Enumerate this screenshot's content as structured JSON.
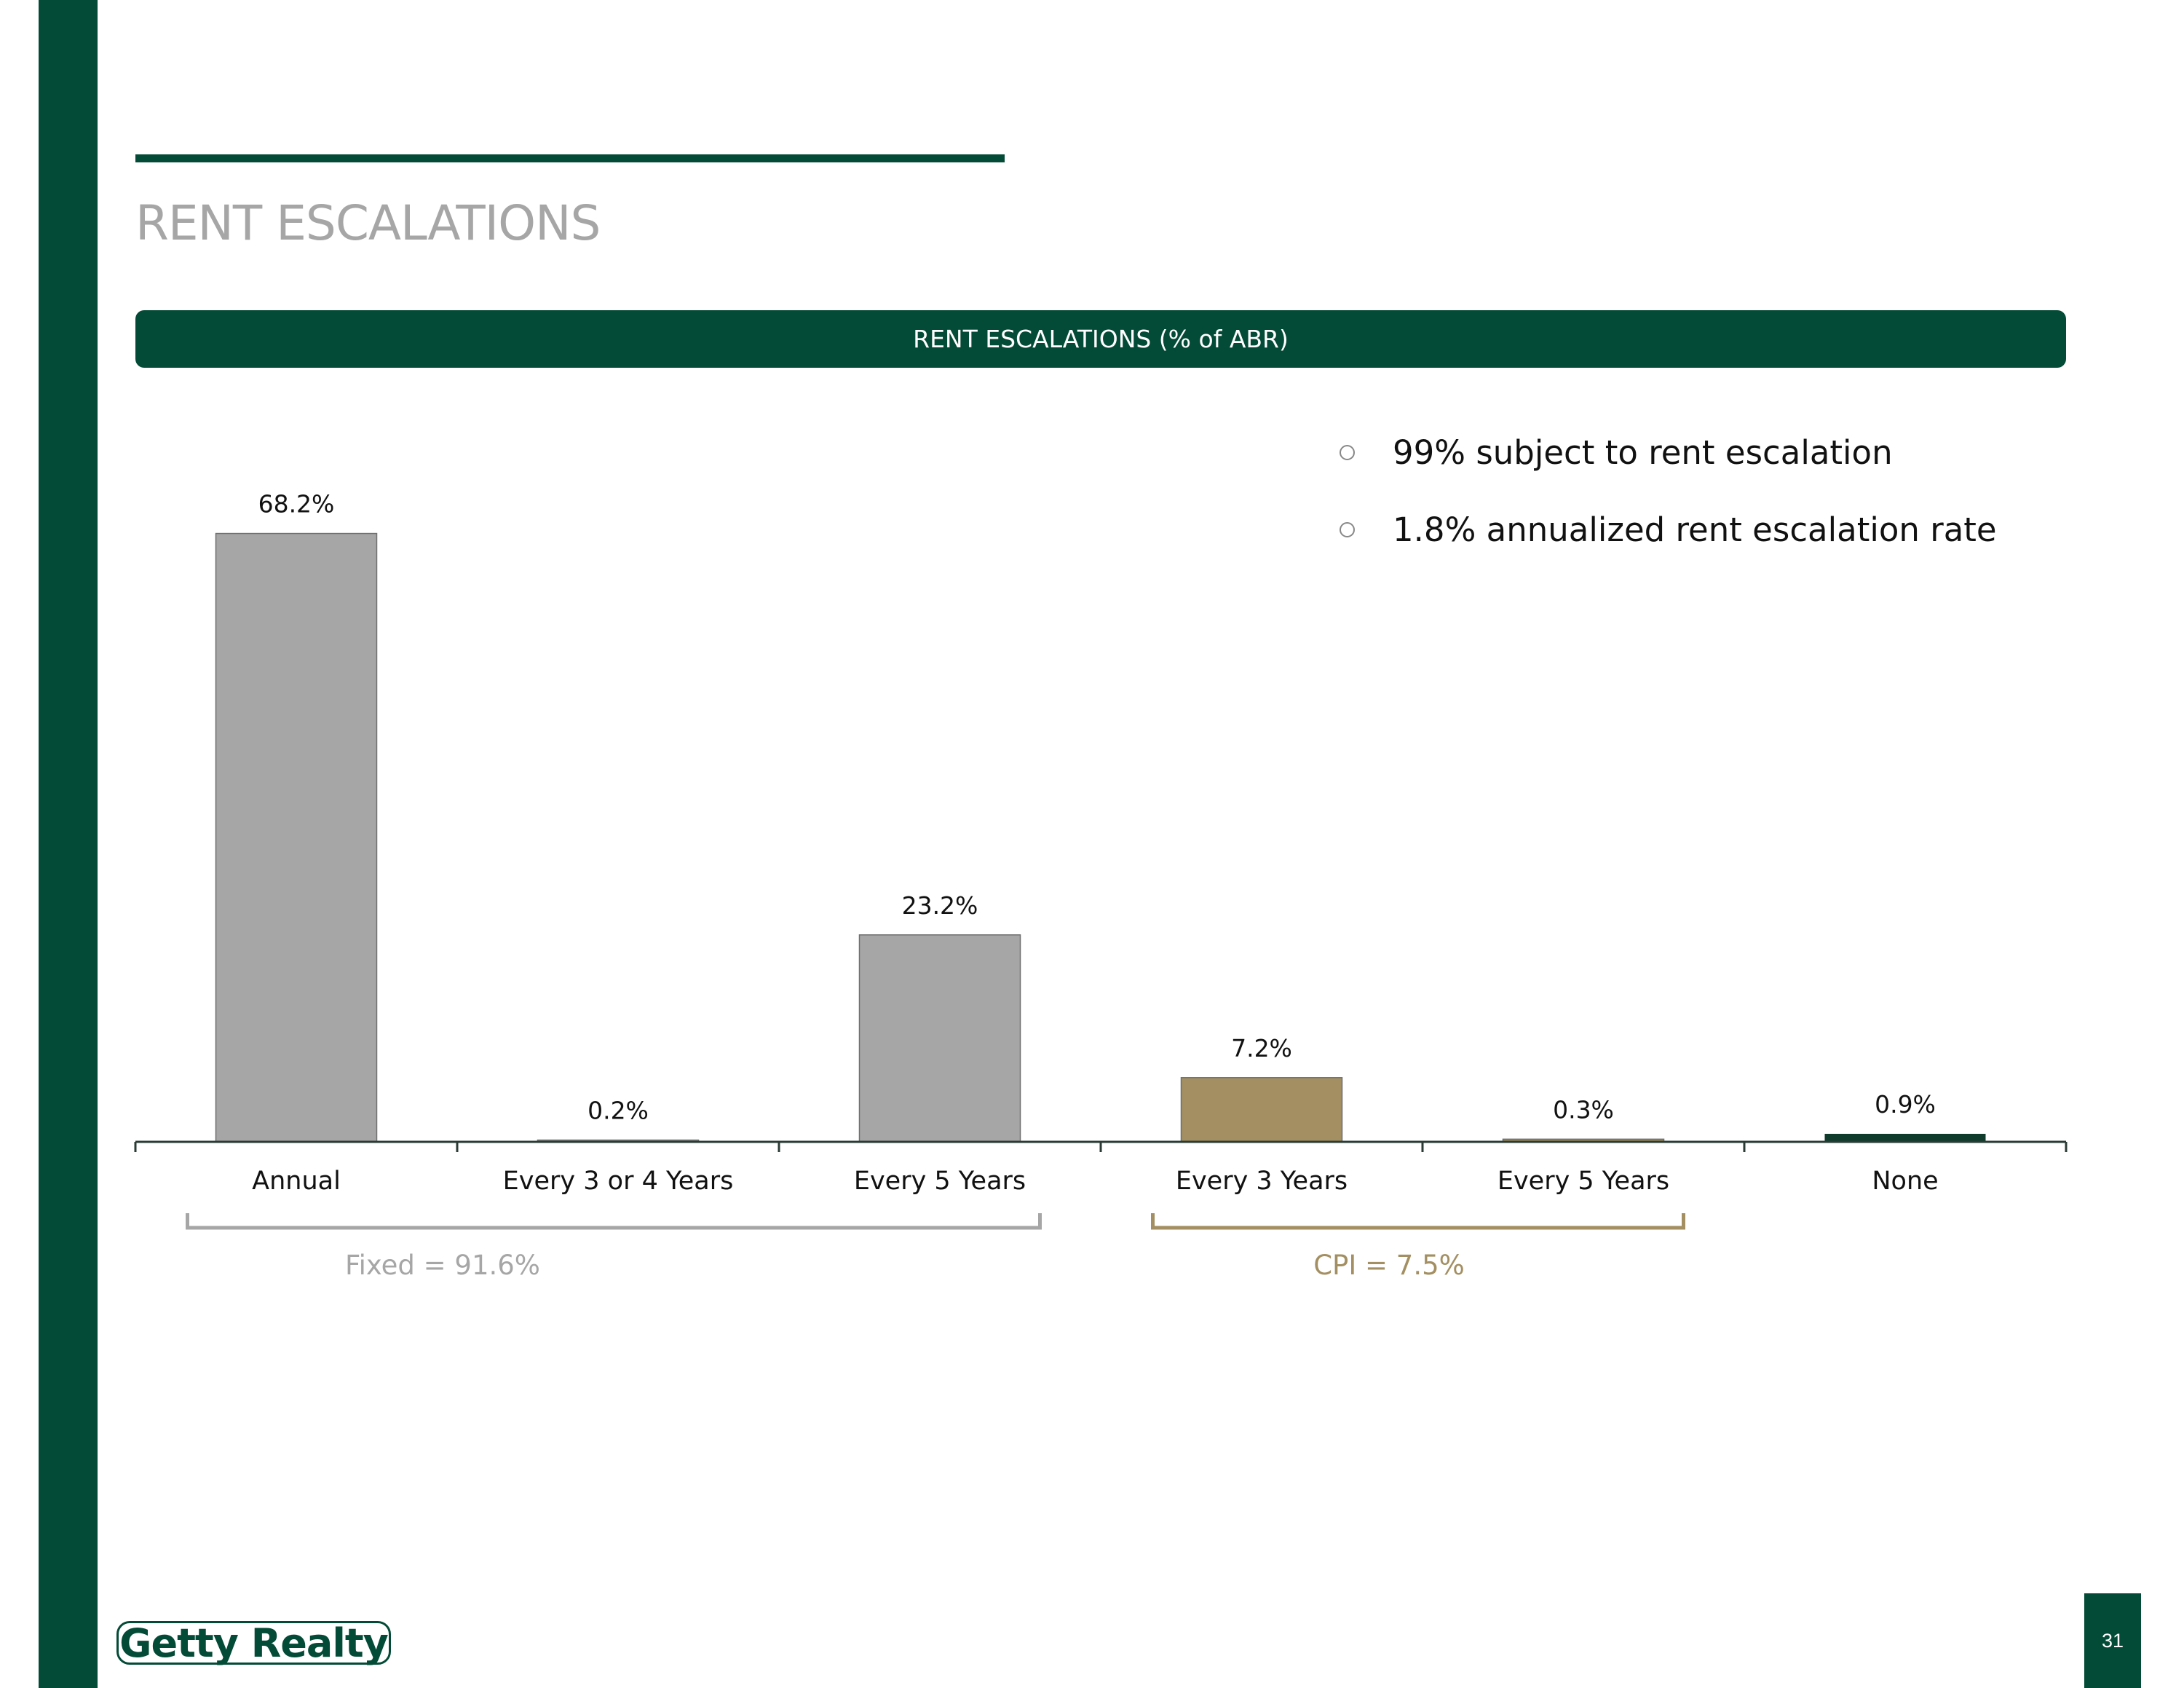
{
  "page": {
    "title": "RENT ESCALATIONS",
    "page_number": "31",
    "logo_text": "Getty Realty"
  },
  "bullets": [
    "99% subject to rent escalation",
    "1.8% annualized rent escalation rate"
  ],
  "colors": {
    "brand_green": "#034b36",
    "fixed_gray": "#a6a6a6",
    "cpi_tan": "#a38f61",
    "none_green": "#0e3b2c"
  },
  "chart_data": {
    "type": "bar",
    "title": "RENT ESCALATIONS (% of ABR)",
    "xlabel": "",
    "ylabel": "",
    "ylim": [
      0,
      100
    ],
    "categories": [
      "Annual",
      "Every 3 or 4 Years",
      "Every 5 Years",
      "Every 3 Years",
      "Every 5 Years",
      "None"
    ],
    "values": [
      68.2,
      0.2,
      23.2,
      7.2,
      0.3,
      0.9
    ],
    "data_labels": [
      "68.2%",
      "0.2%",
      "23.2%",
      "7.2%",
      "0.3%",
      "0.9%"
    ],
    "bar_groups": [
      "fixed",
      "fixed",
      "fixed",
      "cpi",
      "cpi",
      "none"
    ],
    "groups": [
      {
        "name": "fixed",
        "label": "Fixed = 91.6%",
        "first": 0,
        "last": 2
      },
      {
        "name": "cpi",
        "label": "CPI = 7.5%",
        "first": 3,
        "last": 4
      }
    ],
    "grid": false,
    "legend": "none"
  }
}
